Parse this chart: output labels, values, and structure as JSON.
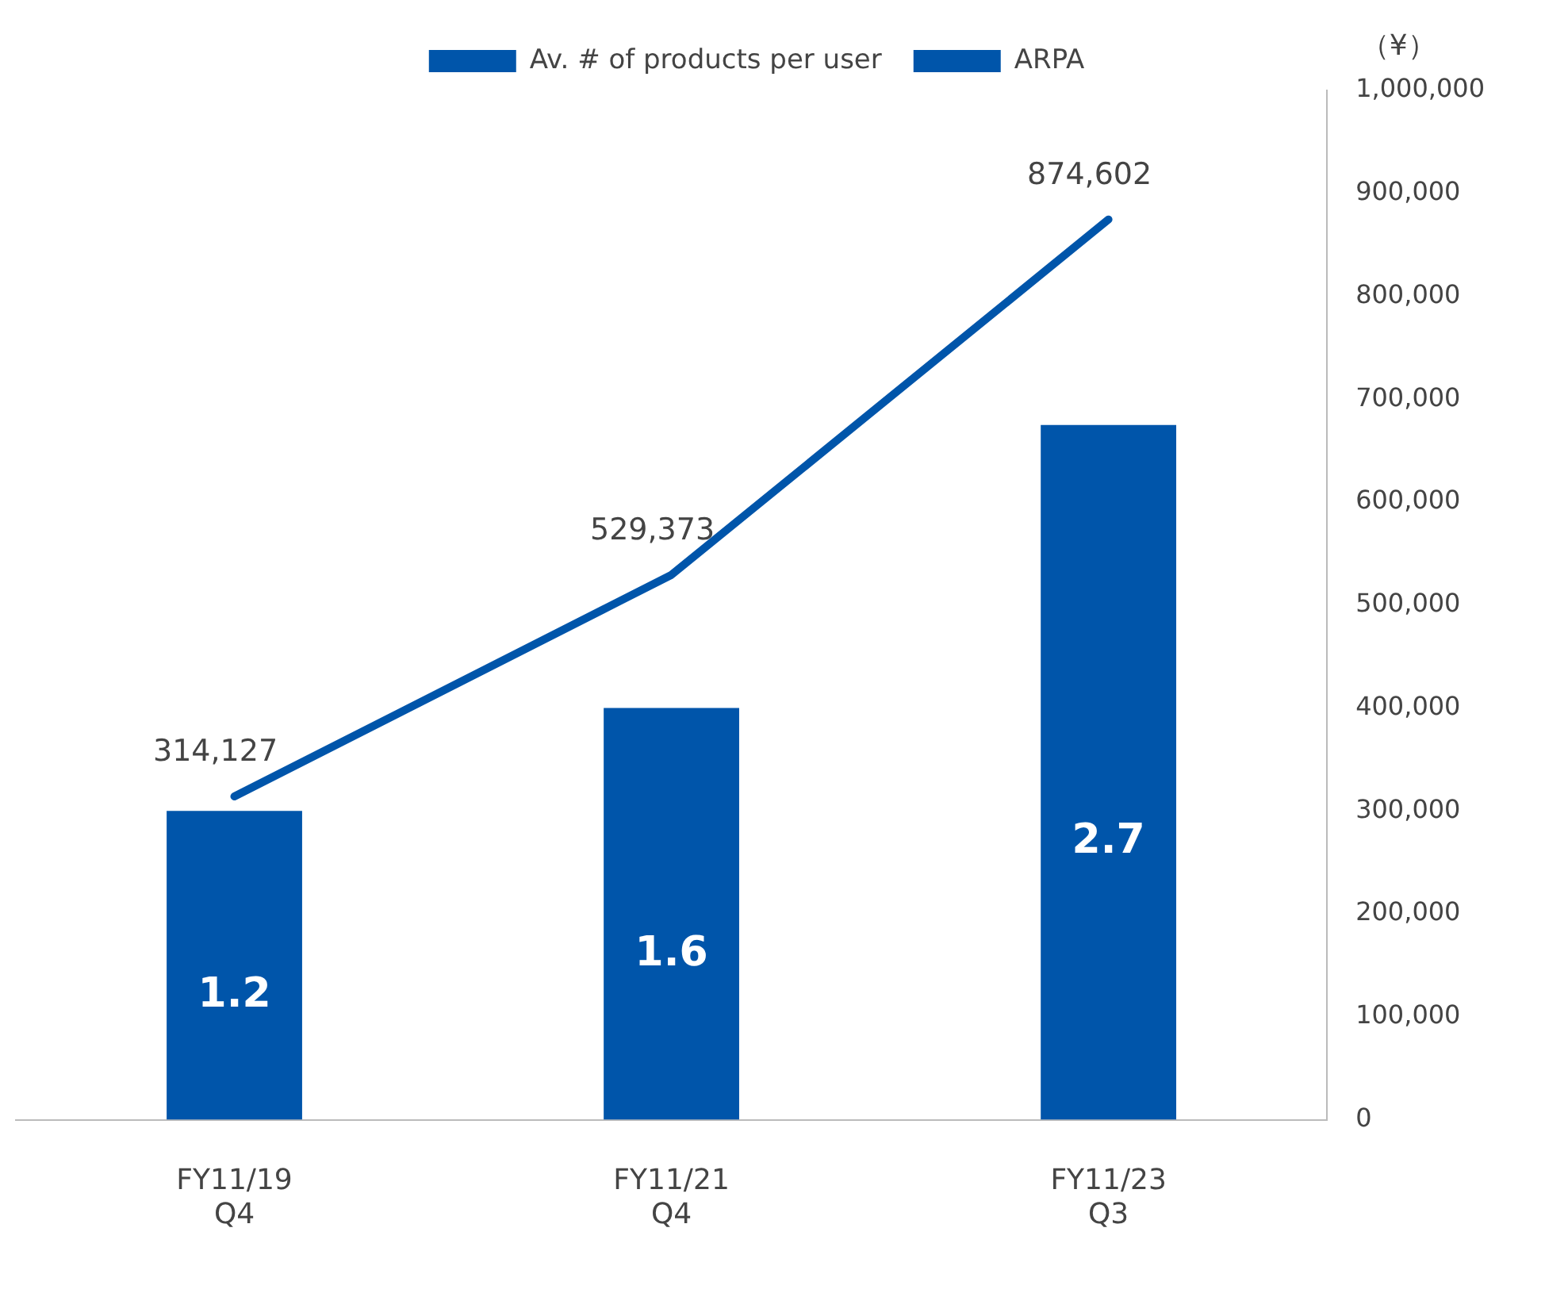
{
  "chart_data": {
    "type": "bar",
    "categories": [
      "FY11/19 Q4",
      "FY11/21 Q4",
      "FY11/23 Q3"
    ],
    "series": [
      {
        "name": "Av. # of products per user",
        "color": "#0055aa",
        "values": [
          1.2,
          1.6,
          2.7
        ]
      },
      {
        "name": "ARPA",
        "type": "line",
        "axis": "y2",
        "color": "#0055aa",
        "values": [
          314127,
          529373,
          874602
        ],
        "value_labels": [
          "314,127",
          "529,373",
          "874,602"
        ]
      }
    ],
    "ylim": [
      0,
      4
    ],
    "y2lim": [
      0,
      1000000
    ],
    "y2ticks": [
      0,
      {
        "value": 100000,
        "label": "100,000"
      },
      {
        "value": 200000,
        "label": "200,000"
      },
      {
        "value": 300000,
        "label": "300,000"
      },
      {
        "value": 400000,
        "label": "400,000"
      },
      {
        "value": 500000,
        "label": "500,000"
      },
      {
        "value": 600000,
        "label": "600,000"
      },
      {
        "value": 700000,
        "label": "700,000"
      },
      {
        "value": 800000,
        "label": "800,000"
      },
      {
        "value": 900000,
        "label": "900,000"
      },
      {
        "value": 1000000,
        "label": "1,000,000"
      }
    ],
    "y2label": "（¥）",
    "data_labels": true,
    "grid": false,
    "legend": "top",
    "marker": "none"
  }
}
